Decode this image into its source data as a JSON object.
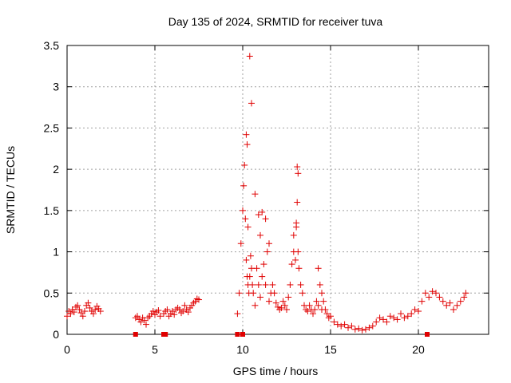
{
  "chart_data": {
    "type": "scatter",
    "title": "Day 135 of 2024, SRMTID for receiver tuva",
    "xlabel": "GPS time / hours",
    "ylabel": "SRMTID / TECUs",
    "xlim": [
      0,
      24
    ],
    "ylim": [
      0,
      3.5
    ],
    "xticks": [
      0,
      5,
      10,
      15,
      20
    ],
    "xtick_labels": [
      "0",
      "5",
      "10",
      "15",
      "20"
    ],
    "yticks": [
      0,
      0.5,
      1,
      1.5,
      2,
      2.5,
      3,
      3.5
    ],
    "ytick_labels": [
      "0",
      "0.5",
      "1",
      "1.5",
      "2",
      "2.5",
      "3",
      "3.5"
    ],
    "grid": true,
    "marker": "+",
    "color": "#e00000",
    "series": [
      {
        "name": "SRMTID",
        "x": [
          0.0,
          0.1,
          0.2,
          0.3,
          0.4,
          0.5,
          0.6,
          0.7,
          0.8,
          0.9,
          1.0,
          1.1,
          1.2,
          1.3,
          1.4,
          1.5,
          1.6,
          1.7,
          1.8,
          1.9,
          3.9,
          4.0,
          4.1,
          4.2,
          4.3,
          4.4,
          4.5,
          4.6,
          4.7,
          4.8,
          4.9,
          5.0,
          5.1,
          5.2,
          5.3,
          5.5,
          5.6,
          5.7,
          5.8,
          5.9,
          6.0,
          6.1,
          6.2,
          6.3,
          6.4,
          6.5,
          6.6,
          6.7,
          6.8,
          6.9,
          7.0,
          7.1,
          7.2,
          7.3,
          7.4,
          7.5,
          9.7,
          9.8,
          9.9,
          10.0,
          10.05,
          10.1,
          10.15,
          10.2,
          10.25,
          10.3,
          10.35,
          10.4,
          10.45,
          10.5,
          10.55,
          10.6,
          10.7,
          10.8,
          10.9,
          11.0,
          11.1,
          11.2,
          11.3,
          11.4,
          11.5,
          11.6,
          11.7,
          11.8,
          11.9,
          12.0,
          12.1,
          12.2,
          12.3,
          12.4,
          12.5,
          12.6,
          12.7,
          12.8,
          12.9,
          13.0,
          13.05,
          13.1,
          13.15,
          13.2,
          13.3,
          13.4,
          13.5,
          13.6,
          13.7,
          13.8,
          13.9,
          14.0,
          14.1,
          14.2,
          14.3,
          14.4,
          14.5,
          14.6,
          14.7,
          14.8,
          14.9,
          15.0,
          15.2,
          15.4,
          15.6,
          15.8,
          16.0,
          16.2,
          16.4,
          16.6,
          16.8,
          17.0,
          17.2,
          17.4,
          17.6,
          17.8,
          18.0,
          18.2,
          18.4,
          18.6,
          18.8,
          19.0,
          19.2,
          19.4,
          19.6,
          19.8,
          20.0,
          20.2,
          20.4,
          20.6,
          20.8,
          21.0,
          21.2,
          21.4,
          21.6,
          21.8,
          22.0,
          22.2,
          22.4,
          22.6,
          22.7,
          10.4,
          10.5,
          10.7,
          10.2,
          10.25,
          10.3,
          13.1,
          13.15,
          13.05,
          12.9,
          11.1,
          11.5,
          11.3,
          11.0,
          10.9,
          14.3,
          14.5,
          3.9,
          5.5,
          5.6,
          9.7,
          10.0,
          20.5
        ],
        "y": [
          0.22,
          0.28,
          0.25,
          0.3,
          0.27,
          0.33,
          0.35,
          0.3,
          0.26,
          0.22,
          0.28,
          0.35,
          0.38,
          0.32,
          0.28,
          0.25,
          0.3,
          0.34,
          0.31,
          0.28,
          0.2,
          0.22,
          0.18,
          0.15,
          0.2,
          0.17,
          0.12,
          0.2,
          0.22,
          0.25,
          0.28,
          0.24,
          0.27,
          0.29,
          0.22,
          0.25,
          0.28,
          0.3,
          0.22,
          0.25,
          0.28,
          0.24,
          0.3,
          0.32,
          0.3,
          0.26,
          0.28,
          0.35,
          0.3,
          0.27,
          0.32,
          0.35,
          0.38,
          0.4,
          0.43,
          0.42,
          0.25,
          0.5,
          1.1,
          1.5,
          1.8,
          2.05,
          1.4,
          0.9,
          0.7,
          0.6,
          0.5,
          0.7,
          0.95,
          0.8,
          0.6,
          0.5,
          0.35,
          0.8,
          0.6,
          0.45,
          0.7,
          0.85,
          0.6,
          1.0,
          0.4,
          0.5,
          0.6,
          0.5,
          0.38,
          0.33,
          0.3,
          0.32,
          0.4,
          0.35,
          0.3,
          0.45,
          0.6,
          0.85,
          1.0,
          0.9,
          1.3,
          1.6,
          1.0,
          0.8,
          0.6,
          0.5,
          0.35,
          0.3,
          0.28,
          0.35,
          0.3,
          0.25,
          0.3,
          0.4,
          0.8,
          0.6,
          0.5,
          0.4,
          0.3,
          0.25,
          0.2,
          0.22,
          0.15,
          0.12,
          0.1,
          0.12,
          0.08,
          0.1,
          0.06,
          0.07,
          0.05,
          0.06,
          0.08,
          0.1,
          0.15,
          0.2,
          0.18,
          0.15,
          0.22,
          0.2,
          0.18,
          0.25,
          0.2,
          0.22,
          0.25,
          0.3,
          0.28,
          0.4,
          0.5,
          0.45,
          0.52,
          0.5,
          0.45,
          0.4,
          0.35,
          0.38,
          0.3,
          0.35,
          0.4,
          0.45,
          0.5,
          3.37,
          2.8,
          1.7,
          2.42,
          2.3,
          1.3,
          2.03,
          1.95,
          1.35,
          1.2,
          1.48,
          1.1,
          1.4,
          1.2,
          1.45,
          0.35,
          0.3,
          0.0,
          0.0,
          0.0,
          0.0,
          0.0,
          0.0
        ]
      }
    ]
  }
}
